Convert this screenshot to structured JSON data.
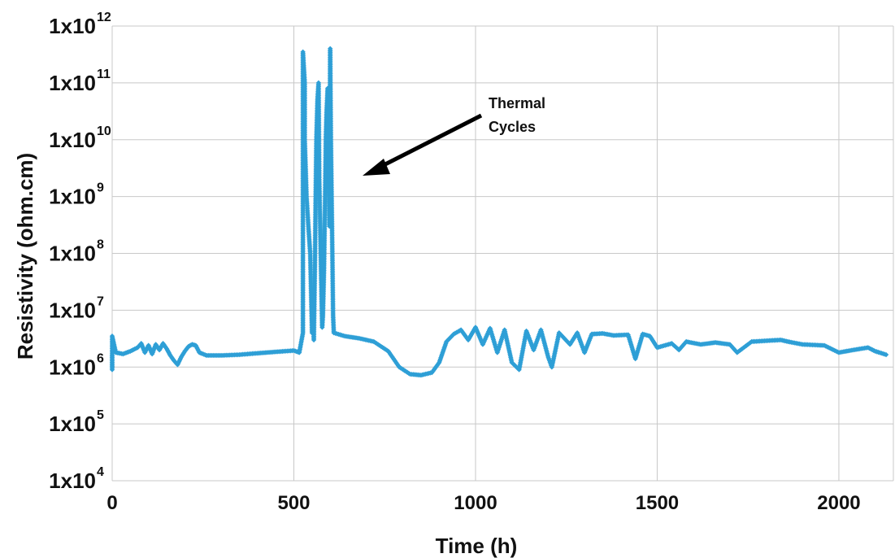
{
  "chart_data": {
    "type": "scatter",
    "xlabel": "Time (h)",
    "ylabel": "Resistivity (ohm.cm)",
    "xlim": [
      0,
      2150
    ],
    "ylim_log10": [
      4,
      12
    ],
    "yscale": "log",
    "xticks": [
      0,
      500,
      1000,
      1500,
      2000
    ],
    "yticks": [
      {
        "base": "1x10",
        "exp": "12"
      },
      {
        "base": "1x10",
        "exp": "11"
      },
      {
        "base": "1x10",
        "exp": "10"
      },
      {
        "base": "1x10",
        "exp": "9"
      },
      {
        "base": "1x10",
        "exp": "8"
      },
      {
        "base": "1x10",
        "exp": "7"
      },
      {
        "base": "1x10",
        "exp": "6"
      },
      {
        "base": "1x10",
        "exp": "5"
      },
      {
        "base": "1x10",
        "exp": "4"
      }
    ],
    "grid": true,
    "color": "#2e9fd6",
    "marker": "diamond",
    "annotation": {
      "lines": [
        "Thermal",
        "Cycles"
      ],
      "arrow_to": {
        "x": 700,
        "y": 2000000000.0
      }
    },
    "series": [
      {
        "values": [
          [
            0,
            1600000.0
          ],
          [
            0,
            900000.0
          ],
          [
            0,
            3500000.0
          ],
          [
            10,
            1800000.0
          ],
          [
            30,
            1700000.0
          ],
          [
            50,
            1900000.0
          ],
          [
            70,
            2200000.0
          ],
          [
            80,
            2600000.0
          ],
          [
            90,
            1800000.0
          ],
          [
            100,
            2400000.0
          ],
          [
            110,
            1700000.0
          ],
          [
            120,
            2500000.0
          ],
          [
            130,
            2000000.0
          ],
          [
            140,
            2600000.0
          ],
          [
            150,
            2100000.0
          ],
          [
            160,
            1600000.0
          ],
          [
            170,
            1300000.0
          ],
          [
            180,
            1100000.0
          ],
          [
            190,
            1500000.0
          ],
          [
            200,
            1900000.0
          ],
          [
            210,
            2300000.0
          ],
          [
            220,
            2500000.0
          ],
          [
            230,
            2400000.0
          ],
          [
            240,
            1800000.0
          ],
          [
            260,
            1600000.0
          ],
          [
            300,
            1600000.0
          ],
          [
            350,
            1650000.0
          ],
          [
            400,
            1750000.0
          ],
          [
            450,
            1850000.0
          ],
          [
            500,
            1950000.0
          ],
          [
            515,
            1800000.0
          ],
          [
            525,
            4000000.0
          ],
          [
            525,
            60000000.0
          ],
          [
            525,
            350000000000.0
          ],
          [
            530,
            100000000000.0
          ],
          [
            530,
            10000000000.0
          ],
          [
            535,
            1000000000.0
          ],
          [
            540,
            300000000.0
          ],
          [
            545,
            100000000.0
          ],
          [
            550,
            4000000.0
          ],
          [
            552,
            10000000.0
          ],
          [
            555,
            3000000.0
          ],
          [
            558,
            60000000.0
          ],
          [
            560,
            1000000000.0
          ],
          [
            562,
            10000000000.0
          ],
          [
            565,
            50000000000.0
          ],
          [
            568,
            100000000000.0
          ],
          [
            570,
            2000000000.0
          ],
          [
            573,
            200000000.0
          ],
          [
            576,
            20000000.0
          ],
          [
            578,
            5000000.0
          ],
          [
            580,
            8000000.0
          ],
          [
            583,
            50000000.0
          ],
          [
            586,
            1000000000.0
          ],
          [
            588,
            10000000000.0
          ],
          [
            590,
            30000000000.0
          ],
          [
            593,
            80000000000.0
          ],
          [
            596,
            3000000000.0
          ],
          [
            598,
            300000000.0
          ],
          [
            600,
            400000000000.0
          ],
          [
            602,
            10000000000.0
          ],
          [
            604,
            1000000000.0
          ],
          [
            606,
            100000000.0
          ],
          [
            608,
            8000000.0
          ],
          [
            610,
            4000000.0
          ],
          [
            640,
            3500000.0
          ],
          [
            680,
            3200000.0
          ],
          [
            720,
            2800000.0
          ],
          [
            760,
            1900000.0
          ],
          [
            790,
            1000000.0
          ],
          [
            820,
            750000.0
          ],
          [
            850,
            720000.0
          ],
          [
            880,
            800000.0
          ],
          [
            900,
            1200000.0
          ],
          [
            920,
            2800000.0
          ],
          [
            940,
            3800000.0
          ],
          [
            960,
            4500000.0
          ],
          [
            980,
            3000000.0
          ],
          [
            1000,
            5000000.0
          ],
          [
            1020,
            2500000.0
          ],
          [
            1040,
            4800000.0
          ],
          [
            1060,
            1800000.0
          ],
          [
            1080,
            4500000.0
          ],
          [
            1100,
            1200000.0
          ],
          [
            1120,
            900000.0
          ],
          [
            1140,
            4300000.0
          ],
          [
            1160,
            2000000.0
          ],
          [
            1180,
            4500000.0
          ],
          [
            1200,
            1500000.0
          ],
          [
            1210,
            1000000.0
          ],
          [
            1230,
            4000000.0
          ],
          [
            1260,
            2500000.0
          ],
          [
            1280,
            4000000.0
          ],
          [
            1300,
            1800000.0
          ],
          [
            1320,
            3800000.0
          ],
          [
            1350,
            3900000.0
          ],
          [
            1380,
            3600000.0
          ],
          [
            1420,
            3700000.0
          ],
          [
            1440,
            1400000.0
          ],
          [
            1460,
            3800000.0
          ],
          [
            1480,
            3500000.0
          ],
          [
            1500,
            2200000.0
          ],
          [
            1540,
            2600000.0
          ],
          [
            1560,
            2000000.0
          ],
          [
            1580,
            2800000.0
          ],
          [
            1620,
            2500000.0
          ],
          [
            1660,
            2700000.0
          ],
          [
            1700,
            2500000.0
          ],
          [
            1720,
            1800000.0
          ],
          [
            1760,
            2800000.0
          ],
          [
            1800,
            2900000.0
          ],
          [
            1840,
            3000000.0
          ],
          [
            1860,
            2800000.0
          ],
          [
            1900,
            2500000.0
          ],
          [
            1960,
            2400000.0
          ],
          [
            2000,
            1800000.0
          ],
          [
            2040,
            2000000.0
          ],
          [
            2080,
            2200000.0
          ],
          [
            2100,
            1900000.0
          ],
          [
            2130,
            1650000.0
          ]
        ]
      }
    ]
  }
}
